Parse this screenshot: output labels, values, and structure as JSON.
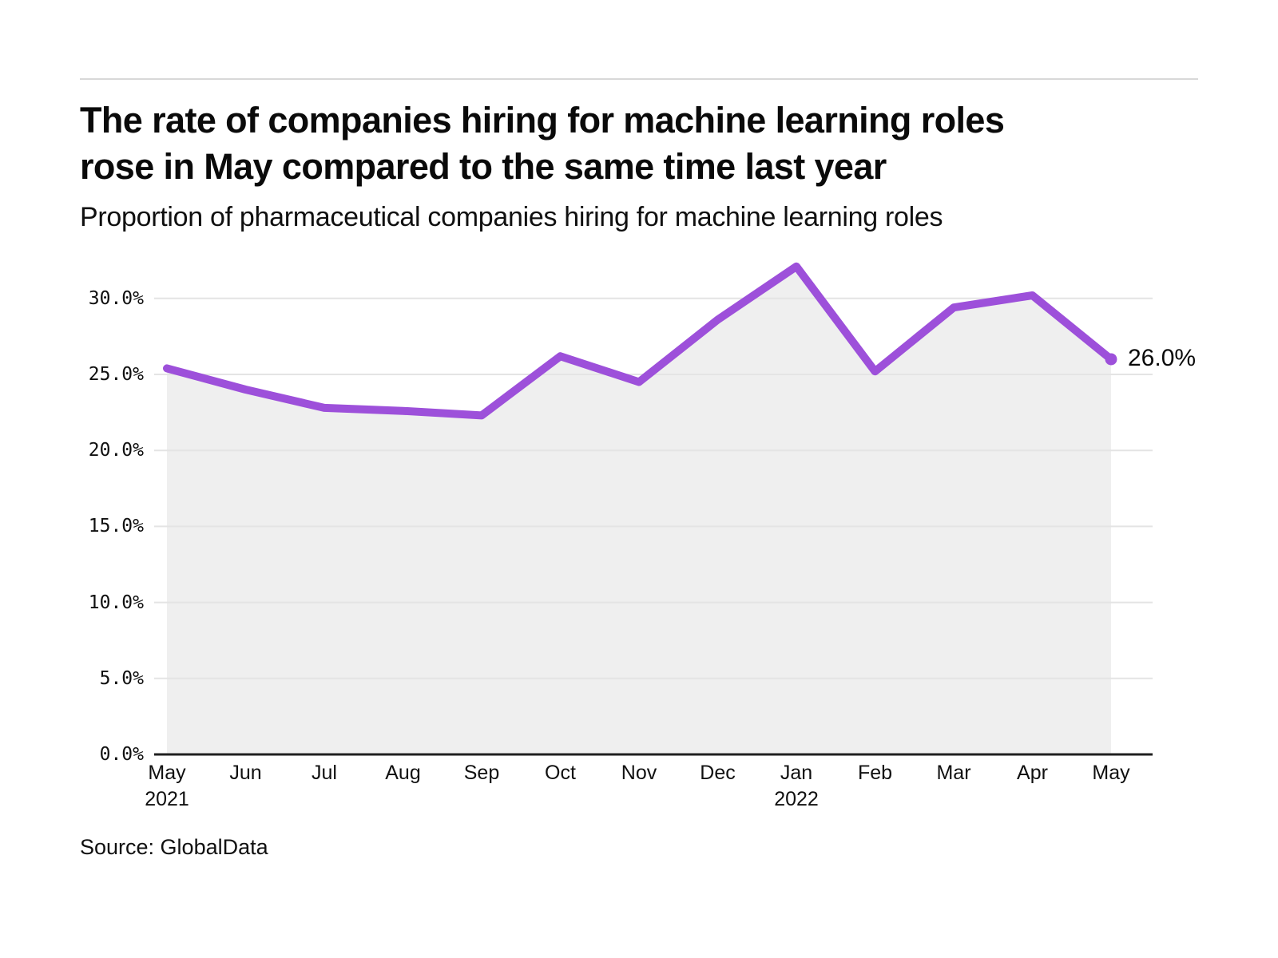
{
  "header": {
    "title_lines": [
      "The rate of companies hiring for machine learning roles",
      "rose in May compared to the same time last year"
    ],
    "subtitle": "Proportion of pharmaceutical companies hiring for machine learning roles"
  },
  "source": {
    "text": "Source: GlobalData"
  },
  "chart_data": {
    "type": "line",
    "title": "The rate of companies hiring for machine learning roles rose in May compared to the same time last year",
    "subtitle": "Proportion of pharmaceutical companies hiring for machine learning roles",
    "x": [
      "May 2021",
      "Jun 2021",
      "Jul 2021",
      "Aug 2021",
      "Sep 2021",
      "Oct 2021",
      "Nov 2021",
      "Dec 2021",
      "Jan 2022",
      "Feb 2022",
      "Mar 2022",
      "Apr 2022",
      "May 2022"
    ],
    "x_tick_labels": [
      "May",
      "Jun",
      "Jul",
      "Aug",
      "Sep",
      "Oct",
      "Nov",
      "Dec",
      "Jan",
      "Feb",
      "Mar",
      "Apr",
      "May"
    ],
    "year_labels": [
      {
        "index": 0,
        "label": "2021"
      },
      {
        "index": 8,
        "label": "2022"
      }
    ],
    "values": [
      25.4,
      24.0,
      22.8,
      22.6,
      22.3,
      26.2,
      24.5,
      28.6,
      32.1,
      25.2,
      29.4,
      30.2,
      26.0
    ],
    "unit": "%",
    "ylim": [
      0,
      33
    ],
    "yticks": [
      0,
      5,
      10,
      15,
      20,
      25,
      30
    ],
    "ytick_labels": [
      "0.0%",
      "5.0%",
      "10.0%",
      "15.0%",
      "20.0%",
      "25.0%",
      "30.0%"
    ],
    "end_label": "26.0%",
    "grid": "horizontal",
    "legend": null,
    "colors": {
      "line": "#9d50da",
      "marker": "#9d50da",
      "area_fill": "#efefef",
      "gridline": "#e4e4e4",
      "axis": "#1f1f1f"
    }
  }
}
